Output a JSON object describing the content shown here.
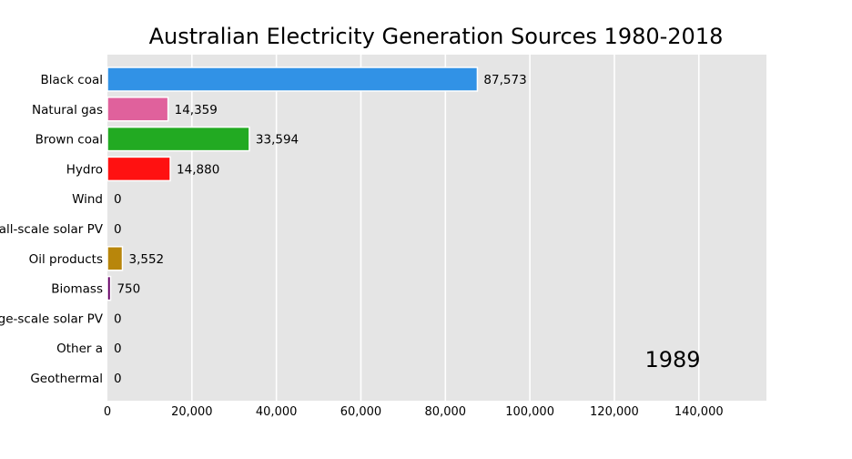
{
  "chart_data": {
    "type": "bar",
    "orientation": "horizontal",
    "title": "Australian Electricity Generation Sources 1980-2018",
    "year": "1989",
    "categories": [
      "Black coal",
      "Natural gas",
      "Brown coal",
      "Hydro",
      "Wind",
      "Small-scale solar PV",
      "Oil products",
      "Biomass",
      "Large-scale solar PV",
      "Other a",
      "Geothermal"
    ],
    "values": [
      87573,
      14359,
      33594,
      14880,
      0,
      0,
      3552,
      750,
      0,
      0,
      0
    ],
    "value_labels": [
      "87,573",
      "14,359",
      "33,594",
      "14,880",
      "0",
      "0",
      "3,552",
      "750",
      "0",
      "0",
      "0"
    ],
    "colors": [
      "#3192e6",
      "#e0619c",
      "#22aa22",
      "#ff1111",
      "#3333cc",
      "#ff9900",
      "#b8860b",
      "#660066",
      "#ffcc00",
      "#888888",
      "#00aaaa"
    ],
    "xticks": [
      0,
      20000,
      40000,
      60000,
      80000,
      100000,
      120000,
      140000
    ],
    "xtick_labels": [
      "0",
      "20,000",
      "40,000",
      "60,000",
      "80,000",
      "100,000",
      "120,000",
      "140,000"
    ],
    "xlim": [
      0,
      156000
    ],
    "xlabel": "",
    "ylabel": "",
    "grid": true,
    "background": "#e5e5e5"
  }
}
